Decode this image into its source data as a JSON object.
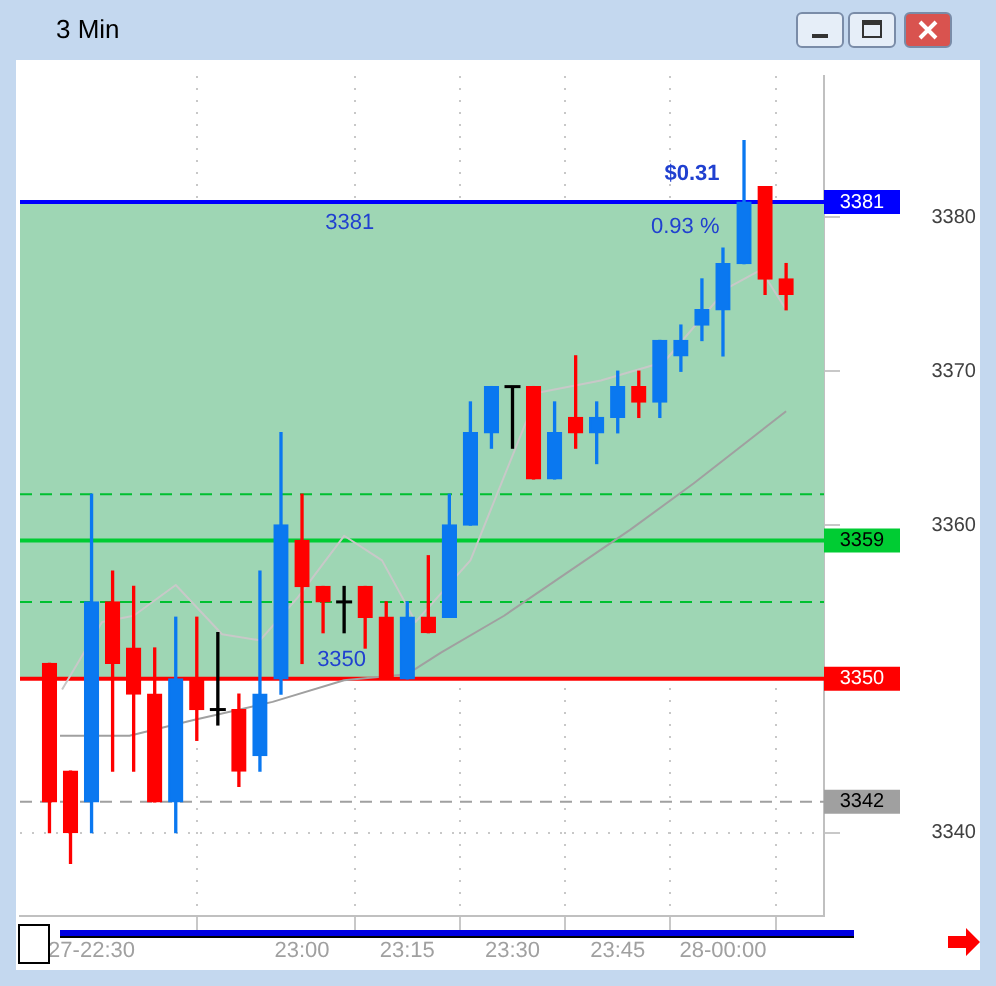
{
  "chart_data": {
    "type": "candlestick",
    "title": "3 Min",
    "x": [
      22.4,
      22.45,
      22.5,
      22.55,
      22.6,
      22.65,
      22.7,
      22.75,
      22.8,
      22.85,
      22.9,
      22.95,
      23,
      23.05,
      23.1,
      23.15,
      23.2,
      23.25,
      23.3,
      23.35,
      23.4,
      23.45,
      23.5,
      23.55,
      23.6,
      23.65,
      23.7,
      23.75,
      23.8,
      23.85,
      23.9,
      23.95,
      24,
      24.05,
      24.1,
      24.15
    ],
    "ohlc": [
      [
        3351,
        3351,
        3340,
        3342
      ],
      [
        3344,
        3344,
        3338,
        3340
      ],
      [
        3342,
        3362,
        3340,
        3355
      ],
      [
        3355,
        3357,
        3344,
        3351
      ],
      [
        3352,
        3356,
        3344,
        3349
      ],
      [
        3349,
        3352,
        3342,
        3342
      ],
      [
        3342,
        3354,
        3340,
        3350
      ],
      [
        3350,
        3354,
        3346,
        3348
      ],
      [
        3348,
        3353,
        3347,
        3348
      ],
      [
        3348,
        3349,
        3343,
        3344
      ],
      [
        3345,
        3357,
        3344,
        3349
      ],
      [
        3350,
        3366,
        3349,
        3360
      ],
      [
        3359,
        3362,
        3351,
        3356
      ],
      [
        3356,
        3356,
        3353,
        3355
      ],
      [
        3355,
        3356,
        3353,
        3355
      ],
      [
        3356,
        3356,
        3352,
        3354
      ],
      [
        3354,
        3355,
        3350,
        3350
      ],
      [
        3350,
        3355,
        3350,
        3354
      ],
      [
        3354,
        3358,
        3353,
        3353
      ],
      [
        3354,
        3362,
        3354,
        3360
      ],
      [
        3360,
        3368,
        3360,
        3366
      ],
      [
        3366,
        3369,
        3365,
        3369
      ],
      [
        3369,
        3369,
        3365,
        3369
      ],
      [
        3369,
        3369,
        3363,
        3363
      ],
      [
        3363,
        3368,
        3363,
        3366
      ],
      [
        3367,
        3371,
        3365,
        3366
      ],
      [
        3366,
        3368,
        3364,
        3367
      ],
      [
        3367,
        3370,
        3366,
        3369
      ],
      [
        3369,
        3370,
        3367,
        3368
      ],
      [
        3368,
        3372,
        3367,
        3372
      ],
      [
        3371,
        3373,
        3370,
        3372
      ],
      [
        3373,
        3376,
        3372,
        3374
      ],
      [
        3374,
        3378,
        3371,
        3377
      ],
      [
        3377,
        3385,
        3377,
        3381
      ],
      [
        3382,
        3382,
        3375,
        3376
      ],
      [
        3376,
        3377,
        3374,
        3375
      ]
    ],
    "colors": [
      "#ff0000",
      "#ff0000",
      "#0a78f0",
      "#ff0000",
      "#ff0000",
      "#ff0000",
      "#0a78f0",
      "#ff0000",
      "#000000",
      "#ff0000",
      "#0a78f0",
      "#0a78f0",
      "#ff0000",
      "#ff0000",
      "#000000",
      "#ff0000",
      "#ff0000",
      "#0a78f0",
      "#ff0000",
      "#0a78f0",
      "#0a78f0",
      "#0a78f0",
      "#000000",
      "#ff0000",
      "#0a78f0",
      "#ff0000",
      "#0a78f0",
      "#0a78f0",
      "#ff0000",
      "#0a78f0",
      "#0a78f0",
      "#0a78f0",
      "#0a78f0",
      "#0a78f0",
      "#ff0000",
      "#ff0000"
    ],
    "series": [
      {
        "type": "line",
        "color": "#a0a0a0",
        "x": [
          22.425,
          22.59,
          22.74,
          22.93,
          23.1,
          23.25,
          23.33,
          23.48,
          23.63,
          23.78,
          23.93,
          24.15
        ],
        "values": [
          3346.3,
          3346.3,
          3347.3,
          3348.5,
          3349.9,
          3350.3,
          3351.7,
          3354.1,
          3356.9,
          3359.7,
          3362.7,
          3367.4
        ]
      },
      {
        "type": "line",
        "color": "#c8c8c8",
        "x": [
          22.43,
          22.525,
          22.6,
          22.7,
          22.81,
          22.9,
          22.99,
          23.1,
          23.19,
          23.27,
          23.4,
          23.56,
          23.71,
          23.86,
          24.01,
          24.09,
          24.15
        ],
        "values": [
          3349.3,
          3353.7,
          3354.1,
          3356.1,
          3352.9,
          3352.5,
          3355.3,
          3359.3,
          3357.7,
          3353.7,
          3357.7,
          3368.6,
          3369.4,
          3370.6,
          3375.4,
          3376.6,
          3374
        ]
      }
    ],
    "xlim": [
      22.33,
      24.24
    ],
    "xticks": [
      {
        "value": 22.5,
        "label": "27-22:30"
      },
      {
        "value": 23,
        "label": "23:00"
      },
      {
        "value": 23.25,
        "label": "23:15"
      },
      {
        "value": 23.5,
        "label": "23:30"
      },
      {
        "value": 23.75,
        "label": "23:45"
      },
      {
        "value": 24,
        "label": "28-00:00"
      }
    ],
    "ylim": [
      3334.6,
      3389.2
    ],
    "yticks": [
      3340,
      3360,
      3370,
      3380
    ],
    "grid": true,
    "bands": [
      {
        "axis": "y",
        "from": 3350,
        "to": 3381,
        "color": "#9ed6b4"
      }
    ],
    "ref_lines": [
      {
        "axis": "y",
        "value": 3381,
        "label": "3381",
        "color": "#0000ff",
        "line_style": "solid"
      },
      {
        "axis": "y",
        "value": 3359,
        "label": "3359",
        "color": "#00cc33",
        "line_style": "solid"
      },
      {
        "axis": "y",
        "value": 3350,
        "label": "3350",
        "color": "#ff0000",
        "line_style": "solid"
      },
      {
        "axis": "y",
        "value": 3342,
        "label": "3342",
        "color": "#a0a0a0",
        "line_style": "dashed"
      },
      {
        "axis": "y",
        "value": 3362,
        "color": "#00c030",
        "line_style": "dashed"
      },
      {
        "axis": "y",
        "value": 3355,
        "color": "#00c030",
        "line_style": "dashed"
      }
    ],
    "annotations": [
      "3381",
      "3350",
      "$0.31",
      "0.93 %"
    ]
  }
}
